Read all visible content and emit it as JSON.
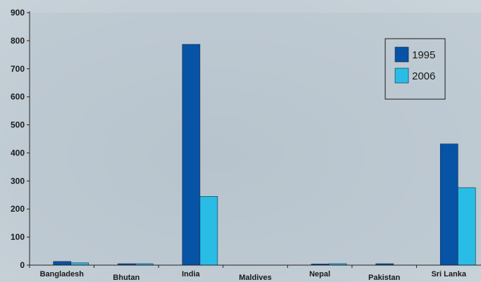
{
  "chart_data": {
    "type": "bar",
    "title": "",
    "xlabel": "",
    "ylabel": "",
    "ylim": [
      0,
      900
    ],
    "yticks": [
      0,
      100,
      200,
      300,
      400,
      500,
      600,
      700,
      800,
      900
    ],
    "grid": false,
    "legend_position": "top-right",
    "categories": [
      "Bangladesh",
      "Bhutan",
      "India",
      "Maldives",
      "Nepal",
      "Pakistan",
      "Sri Lanka"
    ],
    "series": [
      {
        "name": "1995",
        "color": "#0753a6",
        "values": [
          13,
          5,
          787,
          0,
          4,
          5,
          432
        ]
      },
      {
        "name": "2006",
        "color": "#29bde6",
        "values": [
          8,
          5,
          245,
          0,
          5,
          0,
          276
        ]
      }
    ]
  }
}
